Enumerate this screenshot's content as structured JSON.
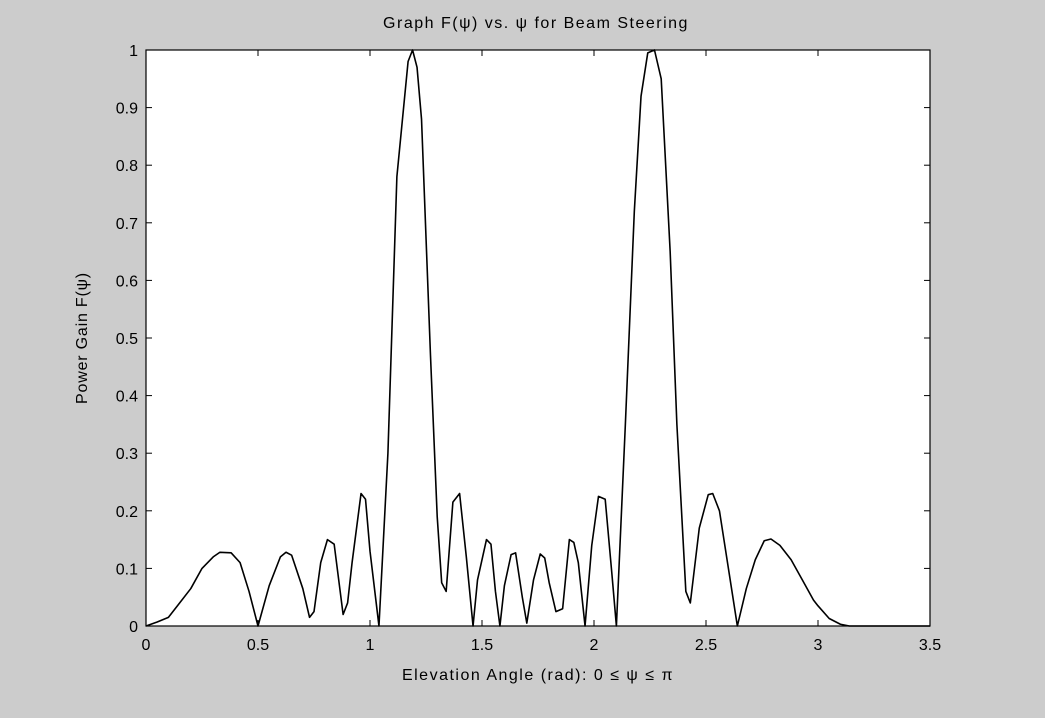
{
  "chart_data": {
    "type": "line",
    "title": "Graph F(ψ) vs. ψ for Beam Steering",
    "xlabel": "Elevation Angle (rad): 0 ≤ ψ ≤ π",
    "ylabel": "Power Gain F(ψ)",
    "xlim": [
      0,
      3.5
    ],
    "ylim": [
      0,
      1
    ],
    "xticks": [
      0,
      0.5,
      1,
      1.5,
      2,
      2.5,
      3,
      3.5
    ],
    "yticks": [
      0,
      0.1,
      0.2,
      0.3,
      0.4,
      0.5,
      0.6,
      0.7,
      0.8,
      0.9,
      1
    ],
    "xtick_labels": [
      "0",
      "0.5",
      "1",
      "1.5",
      "2",
      "2.5",
      "3",
      "3.5"
    ],
    "ytick_labels": [
      "0",
      "0.1",
      "0.2",
      "0.3",
      "0.4",
      "0.5",
      "0.6",
      "0.7",
      "0.8",
      "0.9",
      "1"
    ],
    "grid": false,
    "line_color": "#000000",
    "background_color": "#cccccc",
    "plot_area_color": "#ffffff",
    "series": [
      {
        "points": [
          [
            0.0,
            0.0
          ],
          [
            0.05,
            0.007
          ],
          [
            0.1,
            0.015
          ],
          [
            0.15,
            0.04
          ],
          [
            0.2,
            0.065
          ],
          [
            0.25,
            0.1
          ],
          [
            0.3,
            0.12
          ],
          [
            0.33,
            0.128
          ],
          [
            0.38,
            0.127
          ],
          [
            0.42,
            0.11
          ],
          [
            0.46,
            0.06
          ],
          [
            0.5,
            0.0
          ],
          [
            0.55,
            0.07
          ],
          [
            0.6,
            0.12
          ],
          [
            0.625,
            0.128
          ],
          [
            0.65,
            0.123
          ],
          [
            0.7,
            0.065
          ],
          [
            0.73,
            0.015
          ],
          [
            0.75,
            0.025
          ],
          [
            0.78,
            0.11
          ],
          [
            0.81,
            0.15
          ],
          [
            0.84,
            0.142
          ],
          [
            0.88,
            0.02
          ],
          [
            0.9,
            0.04
          ],
          [
            0.92,
            0.11
          ],
          [
            0.96,
            0.23
          ],
          [
            0.98,
            0.22
          ],
          [
            1.0,
            0.13
          ],
          [
            1.04,
            0.0
          ],
          [
            1.08,
            0.3
          ],
          [
            1.12,
            0.78
          ],
          [
            1.17,
            0.98
          ],
          [
            1.19,
            1.0
          ],
          [
            1.21,
            0.97
          ],
          [
            1.23,
            0.88
          ],
          [
            1.27,
            0.47
          ],
          [
            1.3,
            0.19
          ],
          [
            1.32,
            0.075
          ],
          [
            1.34,
            0.06
          ],
          [
            1.37,
            0.215
          ],
          [
            1.4,
            0.23
          ],
          [
            1.43,
            0.12
          ],
          [
            1.46,
            0.0
          ],
          [
            1.48,
            0.08
          ],
          [
            1.52,
            0.15
          ],
          [
            1.54,
            0.142
          ],
          [
            1.56,
            0.06
          ],
          [
            1.58,
            0.0
          ],
          [
            1.6,
            0.07
          ],
          [
            1.63,
            0.124
          ],
          [
            1.65,
            0.127
          ],
          [
            1.68,
            0.05
          ],
          [
            1.7,
            0.005
          ],
          [
            1.73,
            0.08
          ],
          [
            1.76,
            0.125
          ],
          [
            1.78,
            0.118
          ],
          [
            1.8,
            0.075
          ],
          [
            1.83,
            0.025
          ],
          [
            1.86,
            0.03
          ],
          [
            1.89,
            0.15
          ],
          [
            1.91,
            0.145
          ],
          [
            1.93,
            0.11
          ],
          [
            1.96,
            0.0
          ],
          [
            1.99,
            0.14
          ],
          [
            2.02,
            0.225
          ],
          [
            2.05,
            0.22
          ],
          [
            2.08,
            0.09
          ],
          [
            2.1,
            0.0
          ],
          [
            2.14,
            0.35
          ],
          [
            2.18,
            0.72
          ],
          [
            2.21,
            0.92
          ],
          [
            2.24,
            0.995
          ],
          [
            2.27,
            1.0
          ],
          [
            2.3,
            0.95
          ],
          [
            2.34,
            0.65
          ],
          [
            2.37,
            0.35
          ],
          [
            2.41,
            0.06
          ],
          [
            2.43,
            0.04
          ],
          [
            2.47,
            0.17
          ],
          [
            2.51,
            0.228
          ],
          [
            2.53,
            0.23
          ],
          [
            2.56,
            0.2
          ],
          [
            2.6,
            0.1
          ],
          [
            2.64,
            0.0
          ],
          [
            2.68,
            0.065
          ],
          [
            2.72,
            0.115
          ],
          [
            2.76,
            0.148
          ],
          [
            2.79,
            0.151
          ],
          [
            2.83,
            0.14
          ],
          [
            2.88,
            0.115
          ],
          [
            2.93,
            0.08
          ],
          [
            2.98,
            0.045
          ],
          [
            3.0,
            0.035
          ],
          [
            3.05,
            0.013
          ],
          [
            3.1,
            0.003
          ],
          [
            3.14,
            0.0
          ],
          [
            3.5,
            0.0
          ]
        ]
      }
    ]
  }
}
